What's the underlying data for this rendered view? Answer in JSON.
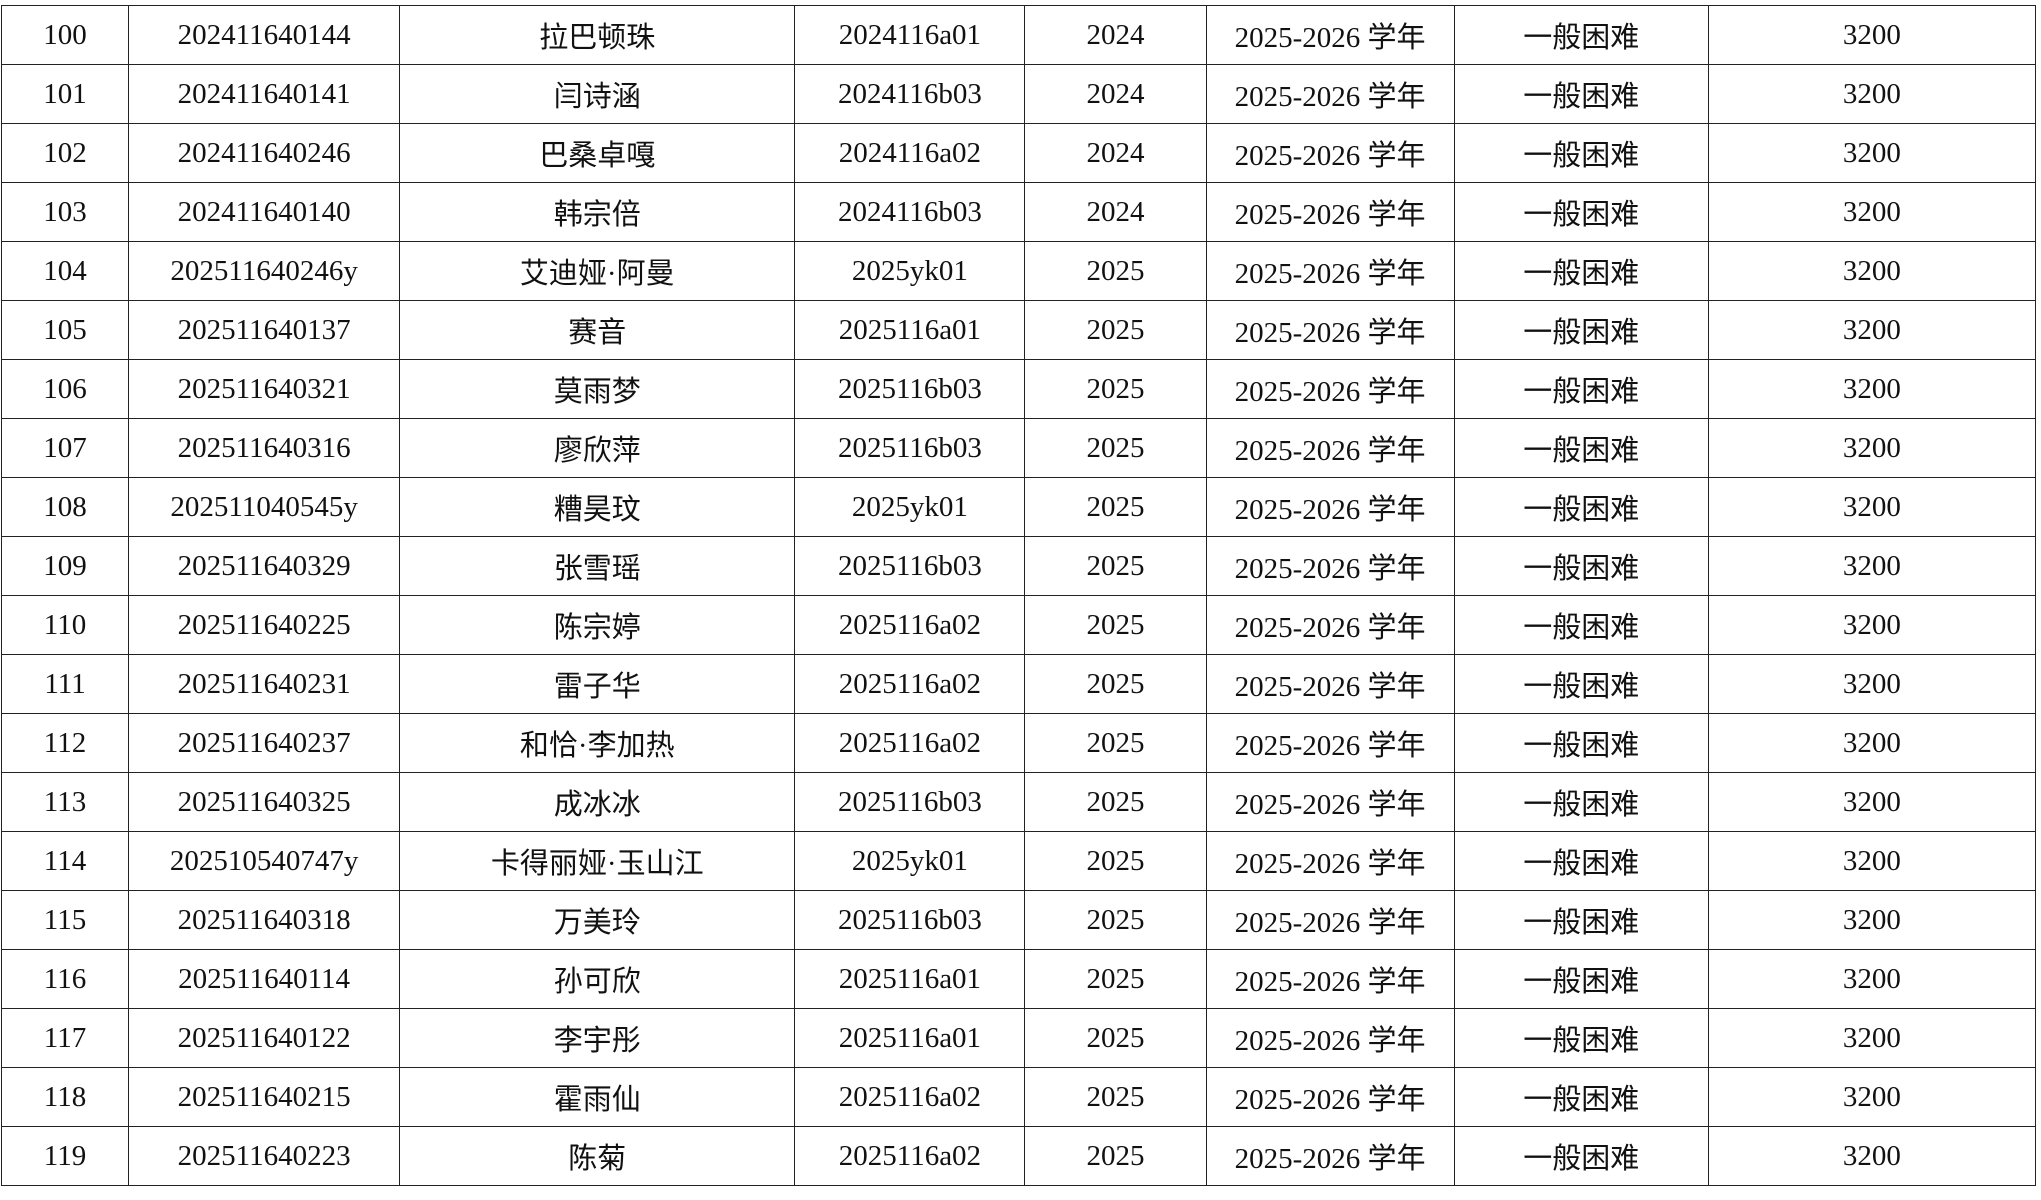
{
  "table": {
    "rows": [
      [
        "100",
        "202411640144",
        "拉巴顿珠",
        "2024116a01",
        "2024",
        "2025-2026 学年",
        "一般困难",
        "3200"
      ],
      [
        "101",
        "202411640141",
        "闫诗涵",
        "2024116b03",
        "2024",
        "2025-2026 学年",
        "一般困难",
        "3200"
      ],
      [
        "102",
        "202411640246",
        "巴桑卓嘎",
        "2024116a02",
        "2024",
        "2025-2026 学年",
        "一般困难",
        "3200"
      ],
      [
        "103",
        "202411640140",
        "韩宗倍",
        "2024116b03",
        "2024",
        "2025-2026 学年",
        "一般困难",
        "3200"
      ],
      [
        "104",
        "202511640246y",
        "艾迪娅·阿曼",
        "2025yk01",
        "2025",
        "2025-2026 学年",
        "一般困难",
        "3200"
      ],
      [
        "105",
        "202511640137",
        "赛音",
        "2025116a01",
        "2025",
        "2025-2026 学年",
        "一般困难",
        "3200"
      ],
      [
        "106",
        "202511640321",
        "莫雨梦",
        "2025116b03",
        "2025",
        "2025-2026 学年",
        "一般困难",
        "3200"
      ],
      [
        "107",
        "202511640316",
        "廖欣萍",
        "2025116b03",
        "2025",
        "2025-2026 学年",
        "一般困难",
        "3200"
      ],
      [
        "108",
        "202511040545y",
        "糟昊玟",
        "2025yk01",
        "2025",
        "2025-2026 学年",
        "一般困难",
        "3200"
      ],
      [
        "109",
        "202511640329",
        "张雪瑶",
        "2025116b03",
        "2025",
        "2025-2026 学年",
        "一般困难",
        "3200"
      ],
      [
        "110",
        "202511640225",
        "陈宗婷",
        "2025116a02",
        "2025",
        "2025-2026 学年",
        "一般困难",
        "3200"
      ],
      [
        "111",
        "202511640231",
        "雷子华",
        "2025116a02",
        "2025",
        "2025-2026 学年",
        "一般困难",
        "3200"
      ],
      [
        "112",
        "202511640237",
        "和恰·李加热",
        "2025116a02",
        "2025",
        "2025-2026 学年",
        "一般困难",
        "3200"
      ],
      [
        "113",
        "202511640325",
        "成冰冰",
        "2025116b03",
        "2025",
        "2025-2026 学年",
        "一般困难",
        "3200"
      ],
      [
        "114",
        "202510540747y",
        "卡得丽娅·玉山江",
        "2025yk01",
        "2025",
        "2025-2026 学年",
        "一般困难",
        "3200"
      ],
      [
        "115",
        "202511640318",
        "万美玲",
        "2025116b03",
        "2025",
        "2025-2026 学年",
        "一般困难",
        "3200"
      ],
      [
        "116",
        "202511640114",
        "孙可欣",
        "2025116a01",
        "2025",
        "2025-2026 学年",
        "一般困难",
        "3200"
      ],
      [
        "117",
        "202511640122",
        "李宇彤",
        "2025116a01",
        "2025",
        "2025-2026 学年",
        "一般困难",
        "3200"
      ],
      [
        "118",
        "202511640215",
        "霍雨仙",
        "2025116a02",
        "2025",
        "2025-2026 学年",
        "一般困难",
        "3200"
      ],
      [
        "119",
        "202511640223",
        "陈菊",
        "2025116a02",
        "2025",
        "2025-2026 学年",
        "一般困难",
        "3200"
      ]
    ]
  }
}
